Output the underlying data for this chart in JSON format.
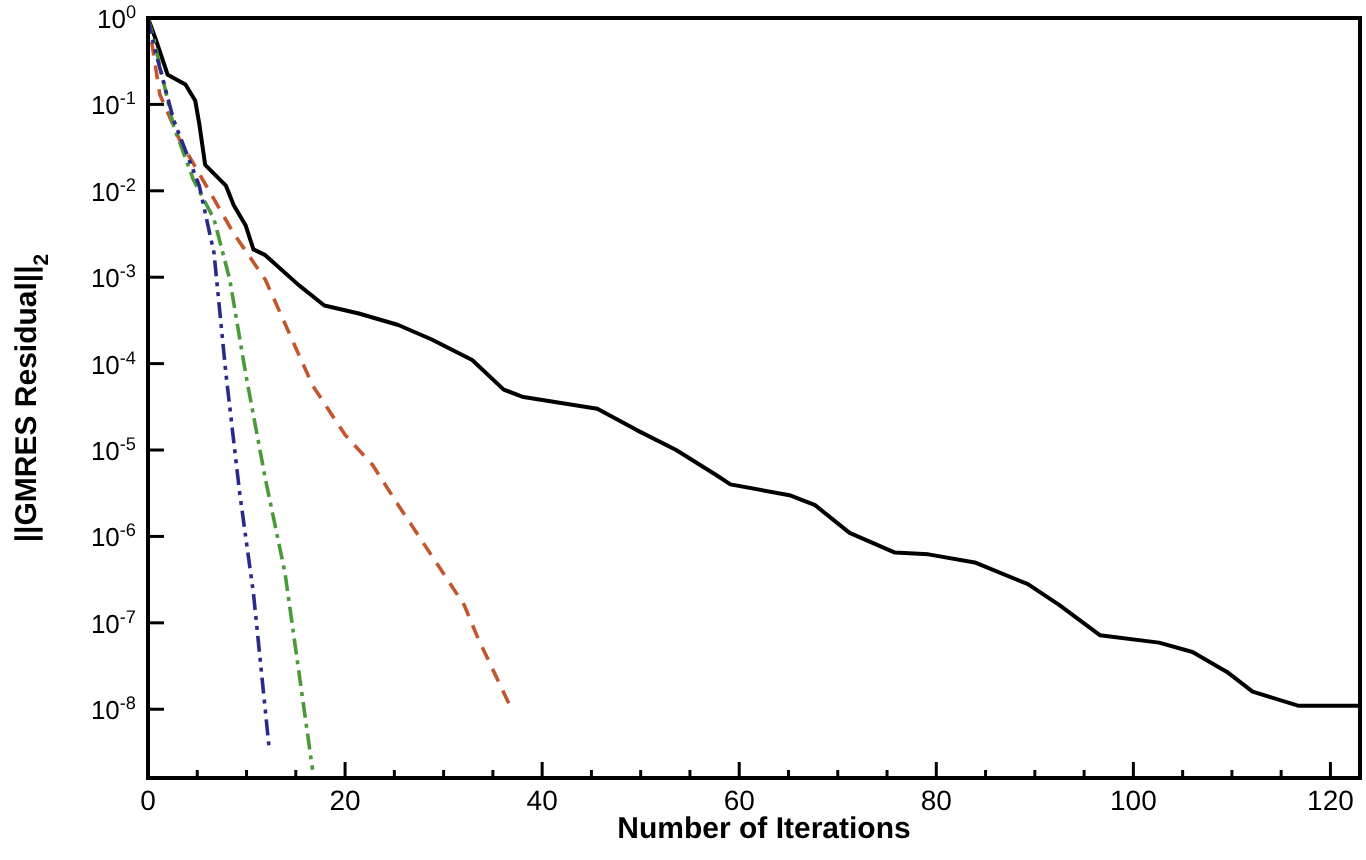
{
  "chart_data": {
    "type": "line",
    "xlabel": "Number of Iterations",
    "ylabel": "||GMRES Residual||$_{2}$",
    "log": "y",
    "grid": false,
    "marker": "none",
    "xlim": [
      0,
      123
    ],
    "ylim": [
      1.6e-09,
      1
    ],
    "xticks": [
      0,
      {
        "value": 5,
        "label": null
      },
      {
        "value": 10,
        "label": null
      },
      {
        "value": 15,
        "label": null
      },
      20,
      {
        "value": 25,
        "label": null
      },
      {
        "value": 30,
        "label": null
      },
      {
        "value": 35,
        "label": null
      },
      40,
      {
        "value": 45,
        "label": null
      },
      {
        "value": 50,
        "label": null
      },
      {
        "value": 55,
        "label": null
      },
      60,
      {
        "value": 65,
        "label": null
      },
      {
        "value": 70,
        "label": null
      },
      {
        "value": 75,
        "label": null
      },
      80,
      {
        "value": 85,
        "label": null
      },
      {
        "value": 90,
        "label": null
      },
      {
        "value": 95,
        "label": null
      },
      100,
      {
        "value": 105,
        "label": null
      },
      {
        "value": 110,
        "label": null
      },
      {
        "value": 115,
        "label": null
      },
      120
    ],
    "yticks": [
      {
        "value": 1,
        "label": "10$^{0}$"
      },
      {
        "value": 0.1,
        "label": "10$^{-1}$"
      },
      {
        "value": 0.01,
        "label": "10$^{-2}$"
      },
      {
        "value": 0.001,
        "label": "10$^{-3}$"
      },
      {
        "value": 0.0001,
        "label": "10$^{-4}$"
      },
      {
        "value": 1e-05,
        "label": "10$^{-5}$"
      },
      {
        "value": 1e-06,
        "label": "10$^{-6}$"
      },
      {
        "value": 1e-07,
        "label": "10$^{-7}$"
      },
      {
        "value": 1e-08,
        "label": "10$^{-8}$"
      }
    ],
    "series": [
      {
        "color": "#000000",
        "line_style": "solid",
        "x": [
          0,
          0.8,
          2,
          3.8,
          4.8,
          5.2,
          5.8,
          7.9,
          8.7,
          9.9,
          10.7,
          11.9,
          15.3,
          17.9,
          21.4,
          25.4,
          28.8,
          32.9,
          36.1,
          38.1,
          45.6,
          49.6,
          53.6,
          57.7,
          59.1,
          65.1,
          67.7,
          71.2,
          75.8,
          79.2,
          83.9,
          89.3,
          92.5,
          96.6,
          102.6,
          106,
          109.5,
          112.1,
          116.7,
          122.8
        ],
        "values": [
          1,
          0.56,
          0.22,
          0.17,
          0.11,
          0.06,
          0.02,
          0.0115,
          0.0068,
          0.004,
          0.0021,
          0.0018,
          0.00081,
          0.00047,
          0.00038,
          0.00028,
          0.00019,
          0.00011,
          5e-05,
          4.1e-05,
          3e-05,
          1.7e-05,
          1e-05,
          5.1e-06,
          4e-06,
          3e-06,
          2.3e-06,
          1.1e-06,
          6.5e-07,
          6.2e-07,
          5e-07,
          2.8e-07,
          1.6e-07,
          7.2e-08,
          5.9e-08,
          4.6e-08,
          2.7e-08,
          1.6e-08,
          1.1e-08,
          1.1e-08
        ]
      },
      {
        "color": "#c4562e",
        "line_style": "dashed",
        "x": [
          0,
          1.2,
          3.2,
          6.7,
          8.7,
          11.9,
          16.7,
          20,
          22.8,
          25.4,
          29.4,
          32.1,
          33.5,
          36.9
        ],
        "values": [
          1,
          0.13,
          0.039,
          0.008,
          0.0032,
          0.00094,
          5.6e-05,
          1.5e-05,
          6.7e-06,
          2.3e-06,
          4.7e-07,
          1.6e-07,
          6.6e-08,
          1e-08
        ]
      },
      {
        "color": "#4a9a3a",
        "line_style": "dashdot",
        "x": [
          0,
          0.6,
          2.6,
          4.6,
          6.7,
          8.3,
          9.9,
          11.9,
          13.9,
          16.7
        ],
        "values": [
          1,
          0.56,
          0.056,
          0.0135,
          0.0047,
          0.00094,
          7.8e-05,
          4.7e-06,
          3.8e-07,
          2e-09
        ]
      },
      {
        "color": "#2a2a8a",
        "line_style": "dashdotdot",
        "x": [
          0,
          0.6,
          2.6,
          5.2,
          6.7,
          7.9,
          9.3,
          10.7,
          12.3
        ],
        "values": [
          1,
          0.48,
          0.066,
          0.0115,
          0.0019,
          7.8e-05,
          3.2e-06,
          2.2e-07,
          3.5e-09
        ]
      }
    ]
  }
}
